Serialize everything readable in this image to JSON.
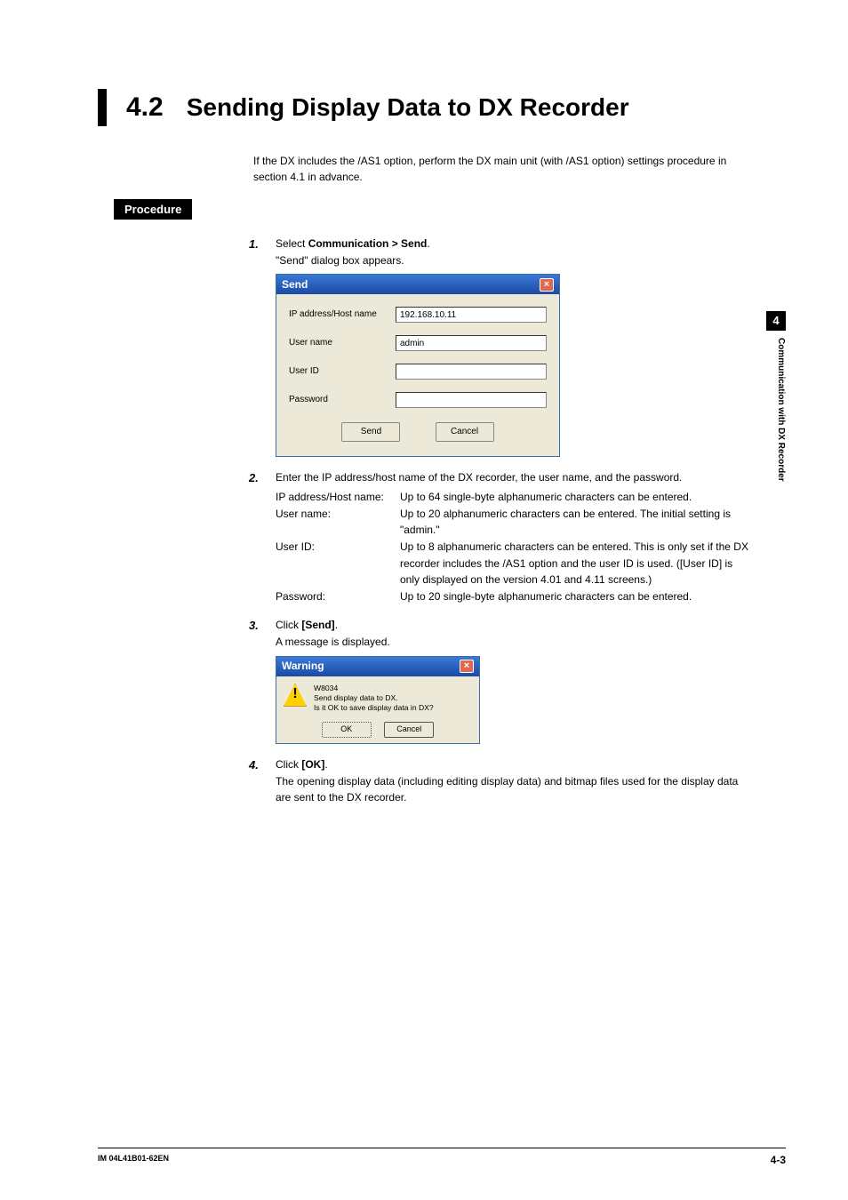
{
  "chapter_tab": "4",
  "side_label": "Communication with DX Recorder",
  "section_number": "4.2",
  "section_title": "Sending Display Data to DX Recorder",
  "intro": "If the DX includes the /AS1 option, perform the DX main unit (with /AS1 option) settings procedure in section 4.1 in advance.",
  "procedure_label": "Procedure",
  "steps": {
    "s1": {
      "num": "1.",
      "lead_pre": "Select ",
      "lead_bold": "Communication > Send",
      "lead_post": ".",
      "sub": "\"Send\" dialog box appears."
    },
    "s2": {
      "num": "2.",
      "lead": "Enter the IP address/host name of the DX recorder, the user name, and the password.",
      "defs": {
        "ip_label": "IP address/Host name:",
        "ip_val": "Up to 64 single-byte alphanumeric characters can be entered.",
        "user_label": "User name:",
        "user_val": "Up to 20 alphanumeric characters can be entered. The initial setting is \"admin.\"",
        "uid_label": "User ID:",
        "uid_val": "Up to 8 alphanumeric characters can be entered. This is only set if the DX recorder includes the /AS1 option and the user ID is used. ([User ID] is only displayed on the version 4.01 and 4.11 screens.)",
        "pw_label": "Password:",
        "pw_val": "Up to 20 single-byte alphanumeric characters can be entered."
      }
    },
    "s3": {
      "num": "3.",
      "lead_pre": "Click ",
      "lead_bold": "[Send]",
      "lead_post": ".",
      "sub": "A message is displayed."
    },
    "s4": {
      "num": "4.",
      "lead_pre": "Click ",
      "lead_bold": "[OK]",
      "lead_post": ".",
      "sub": "The opening display data (including editing display data) and bitmap files used for the display data are sent to the DX recorder."
    }
  },
  "send_dialog": {
    "title": "Send",
    "ip_label": "IP address/Host name",
    "ip_value": "192.168.10.11",
    "user_label": "User name",
    "user_value": "admin",
    "uid_label": "User ID",
    "uid_value": "",
    "pw_label": "Password",
    "pw_value": "",
    "send_btn": "Send",
    "cancel_btn": "Cancel"
  },
  "warning_dialog": {
    "title": "Warning",
    "code": "W8034",
    "line1": "Send display data to DX.",
    "line2": "Is it OK to save display data in DX?",
    "ok_btn": "OK",
    "cancel_btn": "Cancel"
  },
  "footer": {
    "left": "IM 04L41B01-62EN",
    "right": "4-3"
  },
  "colors": {
    "titlebar_start": "#3a79d6",
    "titlebar_end": "#1b4aa3",
    "dialog_bg": "#ece9d8",
    "close_bg": "#e06850",
    "warn_icon_bg": "#ffcf00"
  }
}
